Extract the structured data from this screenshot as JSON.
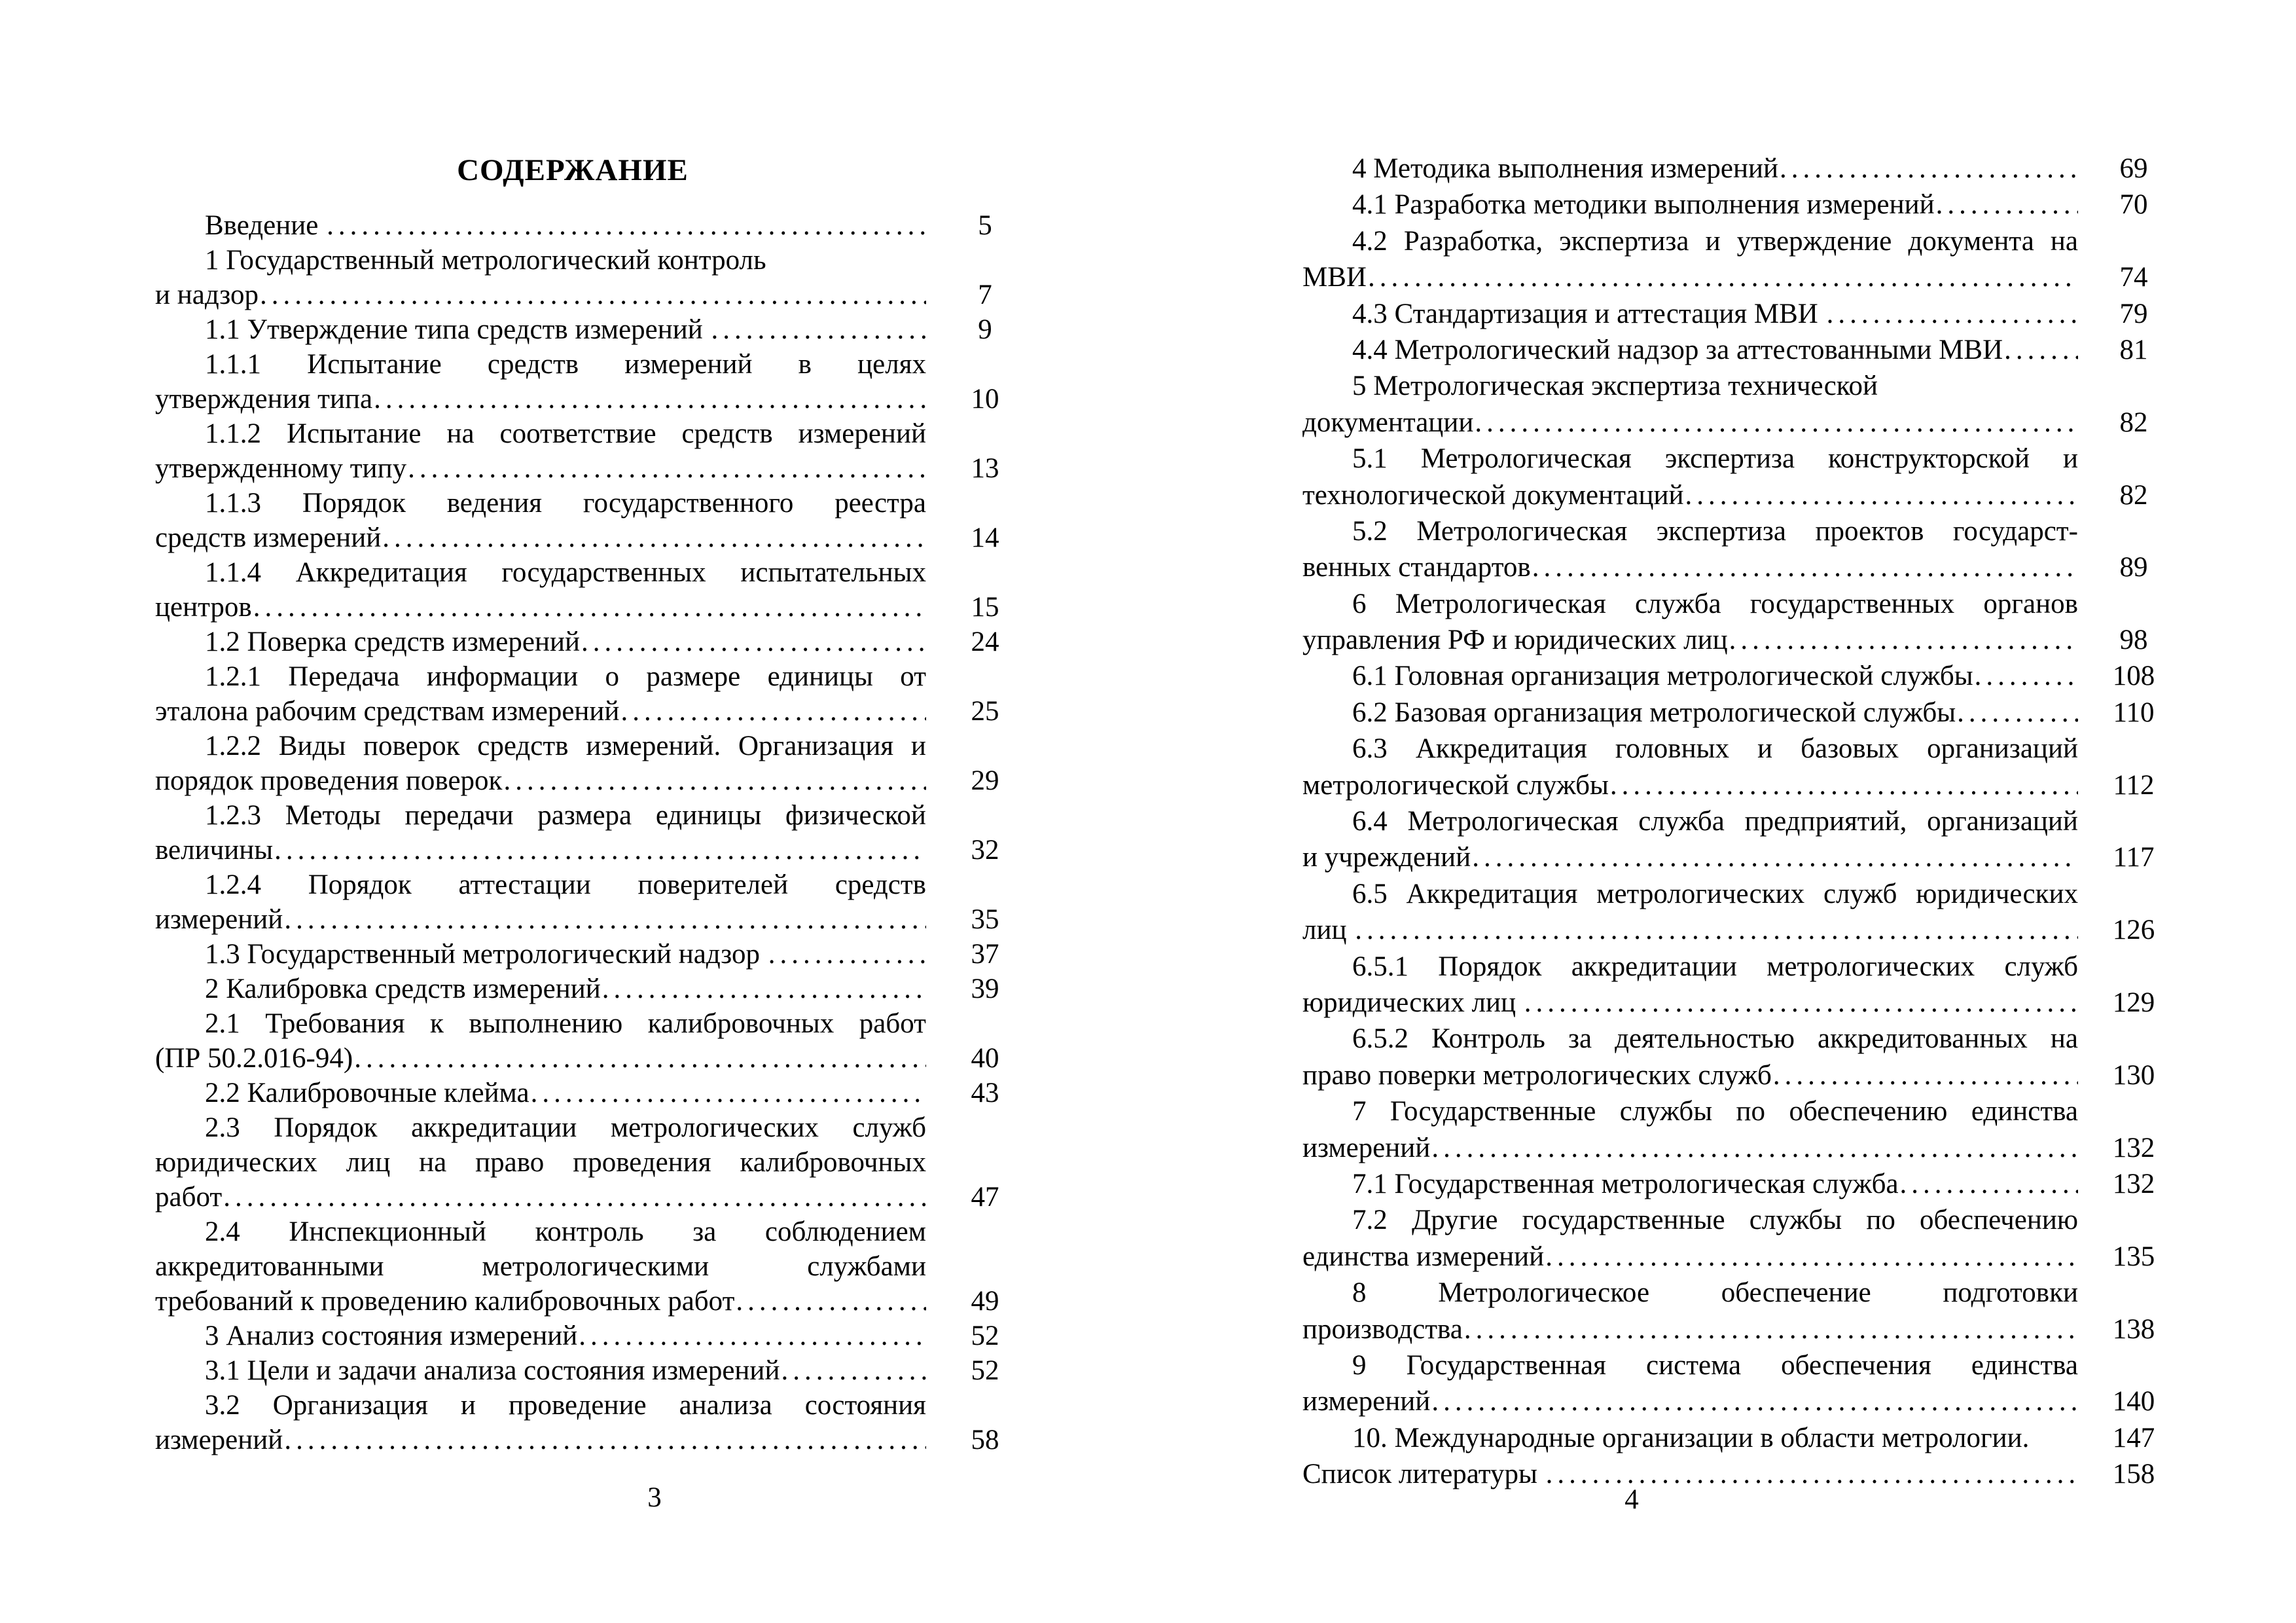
{
  "document": {
    "leader_char": ".",
    "pages": [
      {
        "title": "СОДЕРЖАНИЕ",
        "footer_page_number": "3",
        "entries": [
          {
            "page": "5",
            "lines": [
              {
                "text": "Введение ",
                "leader": true
              }
            ]
          },
          {
            "page": "7",
            "lines": [
              {
                "text": "1 Государственный метрологический контроль"
              },
              {
                "text": "и надзор",
                "leader": true
              }
            ]
          },
          {
            "page": "9",
            "lines": [
              {
                "text": "1.1 Утверждение типа средств измерений ",
                "leader": true
              }
            ]
          },
          {
            "page": "10",
            "lines": [
              {
                "text": "1.1.1 Испытание средств измерений в целях",
                "justify": true
              },
              {
                "text": "утверждения типа",
                "leader": true
              }
            ]
          },
          {
            "page": "13",
            "lines": [
              {
                "text": "1.1.2 Испытание на соответствие средств измерений",
                "justify": true
              },
              {
                "text": "утвержденному типу",
                "leader": true
              }
            ]
          },
          {
            "page": "14",
            "lines": [
              {
                "text": "1.1.3 Порядок ведения государственного реестра",
                "justify": true
              },
              {
                "text": "средств измерений",
                "leader": true
              }
            ]
          },
          {
            "page": "15",
            "lines": [
              {
                "text": "1.1.4 Аккредитация государственных испытательных",
                "justify": true
              },
              {
                "text": "центров",
                "leader": true
              }
            ]
          },
          {
            "page": "24",
            "lines": [
              {
                "text": "1.2 Поверка средств измерений",
                "leader": true
              }
            ]
          },
          {
            "page": "25",
            "lines": [
              {
                "text": "1.2.1 Передача информации о размере единицы от",
                "justify": true
              },
              {
                "text": "эталона рабочим средствам измерений",
                "leader": true
              }
            ]
          },
          {
            "page": "29",
            "lines": [
              {
                "text": "1.2.2 Виды поверок средств измерений. Организация и",
                "justify": true
              },
              {
                "text": "порядок проведения поверок",
                "leader": true
              }
            ]
          },
          {
            "page": "32",
            "lines": [
              {
                "text": "1.2.3 Методы передачи размера единицы физической",
                "justify": true
              },
              {
                "text": "величины",
                "leader": true
              }
            ]
          },
          {
            "page": "35",
            "lines": [
              {
                "text": "1.2.4 Порядок аттестации поверителей средств",
                "justify": true
              },
              {
                "text": "измерений",
                "leader": true
              }
            ]
          },
          {
            "page": "37",
            "lines": [
              {
                "text": "1.3 Государственный метрологический надзор ",
                "leader": true
              }
            ]
          },
          {
            "page": "39",
            "lines": [
              {
                "text": "2 Калибровка средств измерений",
                "leader": true
              }
            ]
          },
          {
            "page": "40",
            "lines": [
              {
                "text": "2.1 Требования к выполнению калибровочных работ",
                "justify": true
              },
              {
                "text": "(ПР 50.2.016-94)",
                "leader": true
              }
            ]
          },
          {
            "page": "43",
            "lines": [
              {
                "text": "2.2 Калибровочные клейма",
                "leader": true
              }
            ]
          },
          {
            "page": "47",
            "lines": [
              {
                "text": "2.3 Порядок аккредитации метрологических служб",
                "justify": true
              },
              {
                "text": "юридических лиц на право проведения калибровочных",
                "justify": true
              },
              {
                "text": "работ",
                "leader": true
              }
            ]
          },
          {
            "page": "49",
            "lines": [
              {
                "text": "2.4 Инспекционный контроль за соблюдением",
                "justify": true
              },
              {
                "text": "аккредитованными метрологическими службами",
                "justify": true
              },
              {
                "text": "требований к проведению калибровочных работ",
                "leader": true
              }
            ]
          },
          {
            "page": "52",
            "lines": [
              {
                "text": "3 Анализ состояния измерений",
                "leader": true
              }
            ]
          },
          {
            "page": "52",
            "lines": [
              {
                "text": "3.1 Цели и задачи анализа состояния измерений",
                "leader": true
              }
            ]
          },
          {
            "page": "58",
            "lines": [
              {
                "text": "3.2 Организация и проведение анализа состояния",
                "justify": true
              },
              {
                "text": "измерений",
                "leader": true
              }
            ]
          }
        ]
      },
      {
        "title": null,
        "footer_page_number": "4",
        "entries": [
          {
            "page": "69",
            "lines": [
              {
                "text": "4 Методика выполнения измерений",
                "leader": true
              }
            ]
          },
          {
            "page": "70",
            "lines": [
              {
                "text": "4.1 Разработка методики выполнения измерений",
                "leader": true
              }
            ]
          },
          {
            "page": "74",
            "lines": [
              {
                "text": "4.2 Разработка, экспертиза и утверждение документа на",
                "justify": true
              },
              {
                "text": "МВИ",
                "leader": true
              }
            ]
          },
          {
            "page": "79",
            "lines": [
              {
                "text": "4.3 Стандартизация и аттестация МВИ ",
                "leader": true
              }
            ]
          },
          {
            "page": "81",
            "lines": [
              {
                "text": "4.4 Метрологический надзор за аттестованными МВИ",
                "leader": true
              }
            ]
          },
          {
            "page": "82",
            "lines": [
              {
                "text": "5 Метрологическая экспертиза технической"
              },
              {
                "text": "документации",
                "leader": true
              }
            ]
          },
          {
            "page": "82",
            "lines": [
              {
                "text": "5.1 Метрологическая экспертиза конструкторской и",
                "justify": true
              },
              {
                "text": "технологической документаций",
                "leader": true
              }
            ]
          },
          {
            "page": "89",
            "lines": [
              {
                "text": "5.2 Метрологическая экспертиза проектов государст-",
                "justify": true
              },
              {
                "text": "венных стандартов",
                "leader": true
              }
            ]
          },
          {
            "page": "98",
            "lines": [
              {
                "text": "6 Метрологическая служба государственных органов",
                "justify": true
              },
              {
                "text": "управления РФ и юридических лиц",
                "leader": true
              }
            ]
          },
          {
            "page": "108",
            "lines": [
              {
                "text": "6.1 Головная организация метрологической службы",
                "leader": true
              }
            ]
          },
          {
            "page": "110",
            "lines": [
              {
                "text": "6.2 Базовая организация метрологической службы",
                "leader": true
              }
            ]
          },
          {
            "page": "112",
            "lines": [
              {
                "text": "6.3 Аккредитация головных и базовых организаций",
                "justify": true
              },
              {
                "text": "метрологической службы",
                "leader": true
              }
            ]
          },
          {
            "page": "117",
            "lines": [
              {
                "text": "6.4 Метрологическая служба предприятий, организаций",
                "justify": true
              },
              {
                "text": "и учреждений",
                "leader": true
              }
            ]
          },
          {
            "page": "126",
            "lines": [
              {
                "text": "6.5 Аккредитация метрологических служб юридических",
                "justify": true
              },
              {
                "text": "лиц ",
                "leader": true
              }
            ]
          },
          {
            "page": "129",
            "lines": [
              {
                "text": "6.5.1 Порядок аккредитации метрологических служб",
                "justify": true
              },
              {
                "text": "юридических лиц ",
                "leader": true
              }
            ]
          },
          {
            "page": "130",
            "lines": [
              {
                "text": "6.5.2 Контроль за деятельностью аккредитованных на",
                "justify": true
              },
              {
                "text": "право поверки метрологических служб",
                "leader": true
              }
            ]
          },
          {
            "page": "132",
            "lines": [
              {
                "text": "7 Государственные службы по обеспечению единства",
                "justify": true
              },
              {
                "text": "измерений",
                "leader": true
              }
            ]
          },
          {
            "page": "132",
            "lines": [
              {
                "text": "7.1 Государственная метрологическая служба",
                "leader": true
              }
            ]
          },
          {
            "page": "135",
            "lines": [
              {
                "text": "7.2 Другие государственные службы по обеспечению",
                "justify": true
              },
              {
                "text": "единства измерений",
                "leader": true
              }
            ]
          },
          {
            "page": "138",
            "lines": [
              {
                "text": "8 Метрологическое обеспечение подготовки",
                "justify": true
              },
              {
                "text": "производства",
                "leader": true
              }
            ]
          },
          {
            "page": "140",
            "lines": [
              {
                "text": "9 Государственная система обеспечения единства",
                "justify": true
              },
              {
                "text": "измерений",
                "leader": true
              }
            ]
          },
          {
            "page": "147",
            "lines": [
              {
                "text": "10. Международные организации в области метрологии."
              }
            ]
          },
          {
            "page": "158",
            "indent": false,
            "lines": [
              {
                "text": "Список литературы ",
                "leader": true
              }
            ]
          }
        ]
      }
    ]
  }
}
